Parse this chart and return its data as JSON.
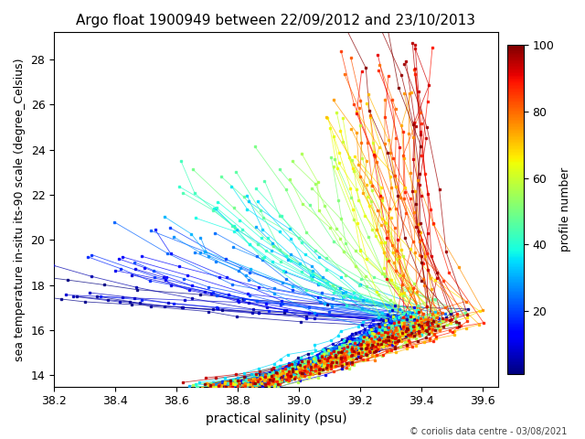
{
  "title": "Argo float 1900949 between 22/09/2012 and 23/10/2013",
  "xlabel": "practical salinity (psu)",
  "ylabel": "sea temperature in-situ its-90 scale (degree_Celsius)",
  "colorbar_label": "profile number",
  "colormap": "jet",
  "clim": [
    1,
    100
  ],
  "colorbar_ticks": [
    20,
    40,
    60,
    80,
    100
  ],
  "xlim": [
    38.2,
    39.65
  ],
  "ylim": [
    13.5,
    29.2
  ],
  "xticks": [
    38.2,
    38.4,
    38.6,
    38.8,
    39.0,
    39.2,
    39.4,
    39.6
  ],
  "yticks": [
    14,
    16,
    18,
    20,
    22,
    24,
    26,
    28
  ],
  "copyright_text": "© coriolis data centre - 03/08/2021",
  "n_profiles": 100,
  "seed": 7
}
